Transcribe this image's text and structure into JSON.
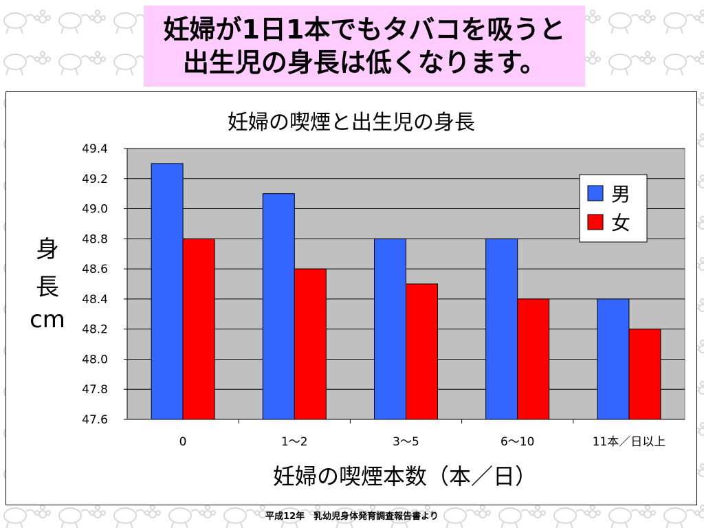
{
  "slide": {
    "title_line1": "妊婦が1日1本でもタバコを吸うと",
    "title_line2": "出生児の身長は低くなります。",
    "source": "平成12年　乳幼児身体発育調査報告書より"
  },
  "chart_data": {
    "type": "bar",
    "title": "妊婦の喫煙と出生児の身長",
    "xlabel": "妊婦の喫煙本数（本／日）",
    "ylabel_lines": [
      "身",
      "長",
      "cm"
    ],
    "categories": [
      "0",
      "1～2",
      "3～5",
      "6～10",
      "11本／日以上"
    ],
    "series": [
      {
        "name": "男",
        "values": [
          49.3,
          49.1,
          48.8,
          48.8,
          48.4
        ],
        "color": "#3366ff"
      },
      {
        "name": "女",
        "values": [
          48.8,
          48.6,
          48.5,
          48.4,
          48.2
        ],
        "color": "#ff0000"
      }
    ],
    "ylim": [
      47.6,
      49.4
    ],
    "yticks": [
      "49.4",
      "49.2",
      "49.0",
      "48.8",
      "48.6",
      "48.4",
      "48.2",
      "48.0",
      "47.8",
      "47.6"
    ],
    "grid": true,
    "legend_position": "top-right",
    "plot_background": "#c0c0c0"
  }
}
